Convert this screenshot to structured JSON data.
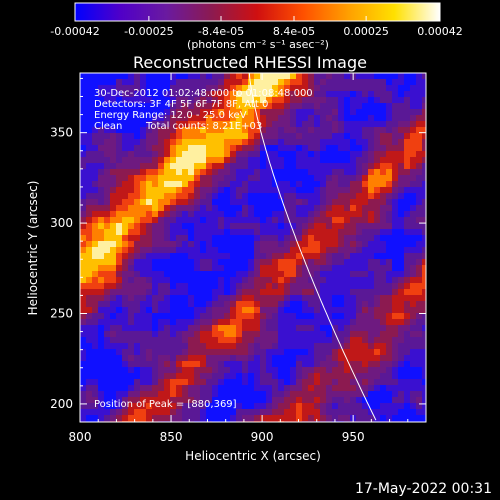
{
  "chart_data": {
    "type": "heatmap",
    "title": "Reconstructed RHESSI Image",
    "xlabel": "Heliocentric X (arcsec)",
    "ylabel": "Heliocentric Y (arcsec)",
    "xlim": [
      800,
      990
    ],
    "ylim": [
      190,
      383
    ],
    "xticks": [
      800,
      850,
      900,
      950
    ],
    "yticks": [
      200,
      250,
      300,
      350
    ],
    "colorbar": {
      "ticks": [
        "-0.00042",
        "-0.00025",
        "-8.4e-05",
        "8.4e-05",
        "0.00025",
        "0.00042"
      ],
      "tick_values": [
        -0.00042,
        -0.00025,
        -8.4e-05,
        8.4e-05,
        0.00025,
        0.00042
      ],
      "range": [
        -0.00042,
        0.00042
      ],
      "unit_label": "(photons cm⁻² s⁻¹ asec⁻²)",
      "colormap": [
        "#0000ff",
        "#5000c8",
        "#6a1aa0",
        "#8c1a50",
        "#d01010",
        "#ff5000",
        "#ffa000",
        "#ffe000",
        "#ffffff"
      ]
    },
    "annotations": {
      "time": "30-Dec-2012 01:02:48.000 to 01:08:48.000",
      "detectors": "Detectors: 3F 4F 5F 6F 7F 8F, Att 0",
      "energy": "Energy Range: 12.0 - 25.0 keV",
      "clean": "Clean",
      "counts": "Total counts: 8.21E+03",
      "peak": "Position of Peak = [880,369]"
    },
    "limb_color": "#ffffff"
  },
  "footer": {
    "date": "17-May-2022 00:31"
  }
}
